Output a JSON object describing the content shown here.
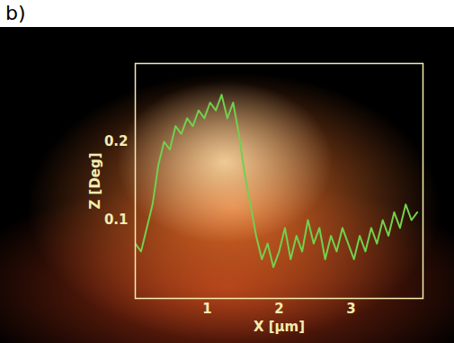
{
  "chart_data": {
    "type": "line",
    "title": "b)",
    "xlabel": "X [µm]",
    "ylabel": "Z [Deg]",
    "x": [
      0,
      0.08,
      0.16,
      0.24,
      0.32,
      0.4,
      0.48,
      0.56,
      0.64,
      0.72,
      0.8,
      0.88,
      0.96,
      1.04,
      1.12,
      1.2,
      1.28,
      1.36,
      1.44,
      1.52,
      1.6,
      1.68,
      1.76,
      1.84,
      1.92,
      2.0,
      2.08,
      2.16,
      2.24,
      2.32,
      2.4,
      2.48,
      2.56,
      2.64,
      2.72,
      2.8,
      2.88,
      2.96,
      3.04,
      3.12,
      3.2,
      3.28,
      3.36,
      3.44,
      3.52,
      3.6,
      3.68,
      3.76,
      3.84,
      3.92
    ],
    "values": [
      0.07,
      0.06,
      0.09,
      0.12,
      0.17,
      0.2,
      0.19,
      0.22,
      0.21,
      0.23,
      0.22,
      0.24,
      0.23,
      0.25,
      0.24,
      0.26,
      0.23,
      0.25,
      0.21,
      0.16,
      0.12,
      0.08,
      0.05,
      0.07,
      0.04,
      0.06,
      0.09,
      0.05,
      0.08,
      0.06,
      0.1,
      0.07,
      0.09,
      0.05,
      0.08,
      0.06,
      0.09,
      0.07,
      0.05,
      0.08,
      0.06,
      0.09,
      0.07,
      0.1,
      0.08,
      0.11,
      0.09,
      0.12,
      0.1,
      0.11
    ],
    "color": "#72d04e",
    "xlim": [
      0,
      4
    ],
    "ylim": [
      0,
      0.3
    ],
    "xticks": [
      1,
      2,
      3
    ],
    "yticks": [
      0.1,
      0.2
    ]
  }
}
